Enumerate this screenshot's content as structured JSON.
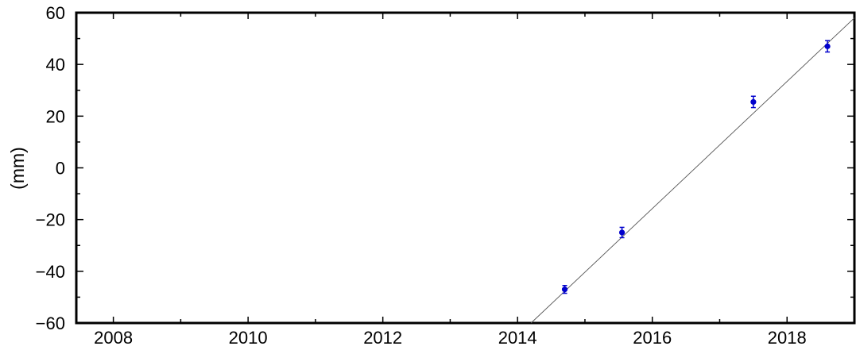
{
  "chart_data": {
    "type": "scatter",
    "title": "",
    "xlabel": "",
    "ylabel": "(mm)",
    "xlim": [
      2007.45,
      2019.0
    ],
    "ylim": [
      -60,
      60
    ],
    "x_ticks": [
      2008,
      2010,
      2012,
      2014,
      2016,
      2018
    ],
    "y_ticks": [
      -60,
      -40,
      -20,
      0,
      20,
      40,
      60
    ],
    "x_tick_labels": [
      "2008",
      "2010",
      "2012",
      "2014",
      "2016",
      "2018"
    ],
    "y_tick_labels": [
      "−60",
      "−40",
      "−20",
      "0",
      "20",
      "40",
      "60"
    ],
    "grid": false,
    "legend": "none",
    "series": [
      {
        "x": [
          2014.7,
          2015.55,
          2017.5,
          2018.6
        ],
        "y": [
          -47.0,
          -25.0,
          25.5,
          47.0
        ],
        "error": [
          1.5,
          2.0,
          2.2,
          2.2
        ],
        "color": "#0000cc"
      }
    ],
    "fit_line": {
      "x": [
        2014.2,
        2019.0
      ],
      "y": [
        -60.0,
        58.0
      ],
      "color": "#555555"
    }
  }
}
